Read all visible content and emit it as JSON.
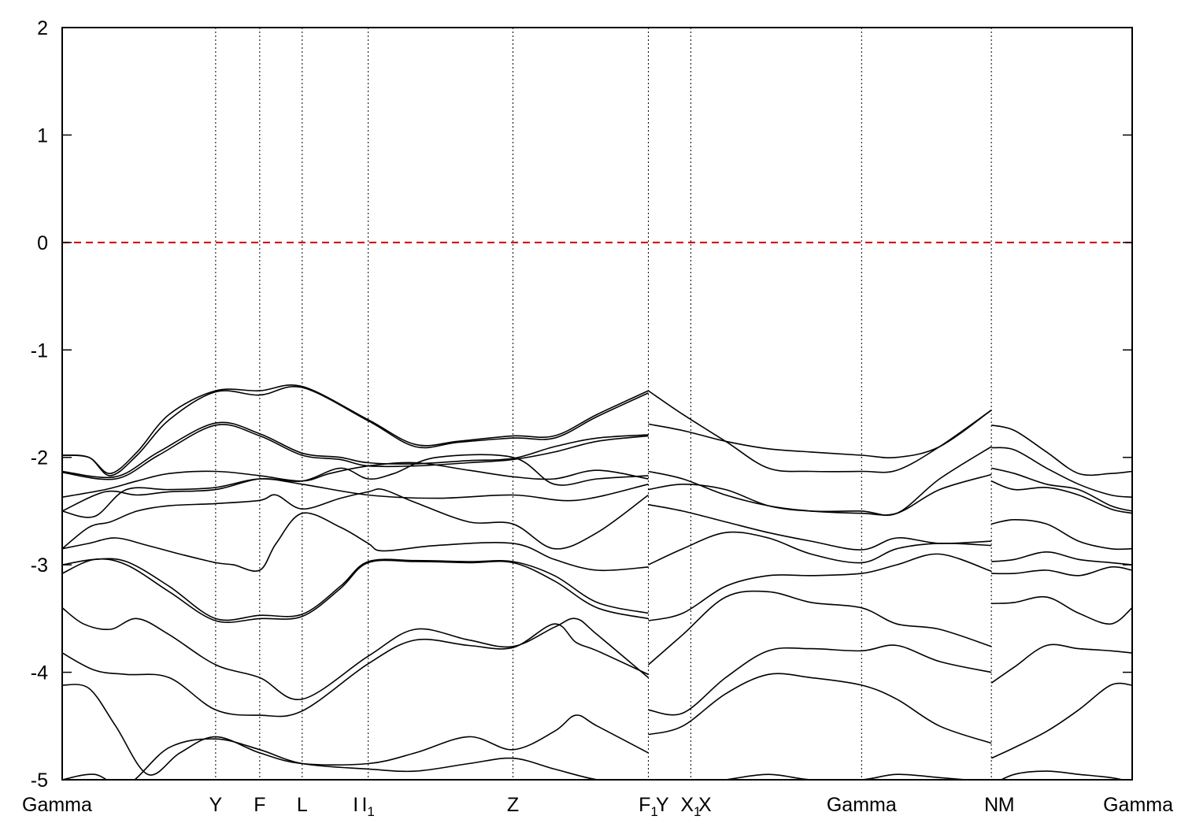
{
  "chart_data": {
    "type": "line",
    "title": "",
    "xlabel": "",
    "ylabel": "",
    "xlim": [
      0,
      100
    ],
    "ylim": [
      -5,
      2
    ],
    "grid": false,
    "yticks": [
      2,
      1,
      0,
      -1,
      -2,
      -3,
      -4,
      -5
    ],
    "xticks": [
      {
        "label": "Gamma",
        "sub": "",
        "pos": 0,
        "vline": false
      },
      {
        "label": "Y",
        "sub": "",
        "pos": 14.34,
        "vline": true
      },
      {
        "label": "F",
        "sub": "",
        "pos": 18.46,
        "vline": true
      },
      {
        "label": "L",
        "sub": "",
        "pos": 22.43,
        "vline": true
      },
      {
        "label": "I",
        "sub": "",
        "pos": 27.43,
        "vline": false
      },
      {
        "label": "I",
        "sub": "1",
        "pos": 28.6,
        "vline": true
      },
      {
        "label": "Z",
        "sub": "",
        "pos": 42.13,
        "vline": true
      },
      {
        "label": "F",
        "sub": "1",
        "pos": 54.78,
        "vline": true
      },
      {
        "label": "Y",
        "sub": "",
        "pos": 56.1,
        "vline": false
      },
      {
        "label": "X",
        "sub": "1",
        "pos": 58.75,
        "vline": true
      },
      {
        "label": "X",
        "sub": "",
        "pos": 60.07,
        "vline": false
      },
      {
        "label": "Gamma",
        "sub": "",
        "pos": 74.71,
        "vline": true
      },
      {
        "label": "N",
        "sub": "",
        "pos": 86.84,
        "vline": true
      },
      {
        "label": "M",
        "sub": "",
        "pos": 88.24,
        "vline": false
      },
      {
        "label": "Gamma",
        "sub": "",
        "pos": 100,
        "vline": false
      }
    ],
    "fermi_level": {
      "y": 0,
      "color": "#d00000",
      "style": "dashed"
    },
    "series_color": "#000000",
    "series": [
      {
        "x": [
          0,
          2.5,
          4.5,
          7,
          10,
          14.34,
          18.46,
          22.43,
          28.6,
          33,
          37,
          42.13,
          46,
          50,
          54.78
        ],
        "y": [
          -1.98,
          -2.0,
          -2.15,
          -1.95,
          -1.6,
          -1.38,
          -1.38,
          -1.34,
          -1.65,
          -1.88,
          -1.85,
          -1.8,
          -1.8,
          -1.6,
          -1.38
        ]
      },
      {
        "x": [
          0,
          2.5,
          4.5,
          7,
          10,
          14.34,
          18.46,
          22.43,
          28.6,
          33,
          37,
          42.13,
          46,
          50,
          54.78
        ],
        "y": [
          -1.98,
          -2.0,
          -2.17,
          -1.98,
          -1.65,
          -1.39,
          -1.42,
          -1.35,
          -1.66,
          -1.9,
          -1.86,
          -1.82,
          -1.82,
          -1.62,
          -1.4
        ]
      },
      {
        "x": [
          0,
          5,
          9,
          14.34,
          18.46,
          22.43,
          26,
          28.6,
          33,
          38,
          42.13,
          46,
          50,
          54.78
        ],
        "y": [
          -2.13,
          -2.18,
          -1.95,
          -1.68,
          -1.78,
          -1.96,
          -2.0,
          -2.05,
          -2.06,
          -2.03,
          -2.01,
          -1.9,
          -1.82,
          -1.79
        ]
      },
      {
        "x": [
          0,
          5,
          9,
          14.34,
          18.46,
          22.43,
          26,
          28.6,
          33,
          38,
          42.13,
          46,
          50,
          54.78
        ],
        "y": [
          -2.14,
          -2.2,
          -1.98,
          -1.7,
          -1.8,
          -1.98,
          -2.02,
          -2.08,
          -2.08,
          -2.05,
          -2.02,
          -1.95,
          -1.85,
          -1.8
        ]
      },
      {
        "x": [
          0,
          4,
          7,
          10,
          14.34,
          18.46,
          22.43,
          25,
          28.6,
          33,
          38,
          42.13,
          46,
          50,
          54.78
        ],
        "y": [
          -2.37,
          -2.3,
          -2.22,
          -2.15,
          -2.13,
          -2.17,
          -2.22,
          -2.15,
          -2.08,
          -2.05,
          -2.12,
          -2.18,
          -2.2,
          -2.12,
          -2.2
        ]
      },
      {
        "x": [
          0,
          4,
          7,
          10,
          14.34,
          18.46,
          22.43,
          26,
          28.6,
          31,
          35,
          42.13,
          46,
          50,
          54.78
        ],
        "y": [
          -2.5,
          -2.32,
          -2.35,
          -2.32,
          -2.3,
          -2.2,
          -2.22,
          -2.1,
          -2.2,
          -2.15,
          -2.0,
          -2.0,
          -2.25,
          -2.2,
          -2.17
        ]
      },
      {
        "x": [
          0,
          3,
          6,
          10,
          14.34,
          18.46,
          22.43,
          28.6,
          35,
          42.13,
          48,
          54.78
        ],
        "y": [
          -2.5,
          -2.55,
          -2.3,
          -2.3,
          -2.28,
          -2.2,
          -2.25,
          -2.35,
          -2.38,
          -2.35,
          -2.4,
          -2.25
        ]
      },
      {
        "x": [
          0,
          2.5,
          4.5,
          7,
          10,
          14.34,
          18.46,
          20,
          22.43,
          26,
          28.6,
          30,
          33,
          38,
          42.13,
          46,
          50,
          54.78
        ],
        "y": [
          -2.85,
          -2.65,
          -2.6,
          -2.5,
          -2.45,
          -2.43,
          -2.4,
          -2.35,
          -2.48,
          -2.38,
          -2.32,
          -2.3,
          -2.42,
          -2.6,
          -2.62,
          -2.85,
          -2.7,
          -2.35
        ]
      },
      {
        "x": [
          0,
          2.5,
          5,
          8,
          11,
          14.34,
          16,
          18.46,
          20,
          22.43,
          26,
          28.6,
          30,
          35,
          42.13,
          46,
          50,
          54.78
        ],
        "y": [
          -2.85,
          -2.8,
          -2.75,
          -2.82,
          -2.9,
          -2.98,
          -3.0,
          -3.05,
          -2.8,
          -2.52,
          -2.65,
          -2.8,
          -2.87,
          -2.82,
          -2.8,
          -2.95,
          -3.05,
          -3.02
        ]
      },
      {
        "x": [
          0,
          3,
          6,
          10,
          14.34,
          18.46,
          22.43,
          26,
          28.6,
          33,
          38,
          42.13,
          46,
          50,
          54.78
        ],
        "y": [
          -3.0,
          -2.95,
          -2.97,
          -3.2,
          -3.5,
          -3.47,
          -3.46,
          -3.2,
          -2.97,
          -2.96,
          -2.97,
          -2.97,
          -3.1,
          -3.35,
          -3.45
        ]
      },
      {
        "x": [
          0,
          3,
          6,
          10,
          14.34,
          18.46,
          22.43,
          26,
          28.6,
          33,
          38,
          42.13,
          46,
          50,
          54.78
        ],
        "y": [
          -3.08,
          -2.95,
          -3.0,
          -3.25,
          -3.52,
          -3.5,
          -3.48,
          -3.22,
          -2.98,
          -2.97,
          -2.98,
          -2.98,
          -3.15,
          -3.4,
          -3.5
        ]
      },
      {
        "x": [
          0,
          2,
          4.5,
          7,
          10,
          14.34,
          18.46,
          22.43,
          28.6,
          33,
          38,
          42.13,
          46,
          48,
          50,
          54.78
        ],
        "y": [
          -3.4,
          -3.55,
          -3.6,
          -3.5,
          -3.65,
          -3.93,
          -4.05,
          -4.25,
          -3.85,
          -3.6,
          -3.7,
          -3.76,
          -3.58,
          -3.5,
          -3.65,
          -4.05
        ]
      },
      {
        "x": [
          0,
          3,
          6,
          10,
          14.34,
          18.46,
          22.43,
          28.6,
          33,
          38,
          42.13,
          46,
          48,
          50,
          54.78
        ],
        "y": [
          -3.82,
          -3.98,
          -4.02,
          -4.05,
          -4.35,
          -4.4,
          -4.36,
          -3.92,
          -3.7,
          -3.75,
          -3.77,
          -3.55,
          -3.72,
          -3.8,
          -4.02
        ]
      },
      {
        "x": [
          0,
          2.5,
          5,
          8,
          11,
          14.34,
          18.46,
          22.43,
          28.6,
          33,
          38,
          42.13,
          46,
          48,
          50,
          54.78
        ],
        "y": [
          -4.12,
          -4.15,
          -4.5,
          -4.95,
          -4.75,
          -4.6,
          -4.75,
          -4.85,
          -4.85,
          -4.75,
          -4.6,
          -4.72,
          -4.55,
          -4.4,
          -4.5,
          -4.75
        ]
      },
      {
        "x": [
          0,
          3,
          6,
          10,
          14.34,
          18.46,
          22.43,
          28.6,
          33,
          38,
          42.13,
          46,
          50,
          54.78
        ],
        "y": [
          -5.0,
          -4.95,
          -5.05,
          -4.7,
          -4.62,
          -4.72,
          -4.85,
          -4.9,
          -4.92,
          -4.85,
          -4.8,
          -4.9,
          -5.0,
          -5.05
        ]
      },
      {
        "x": [
          54.78,
          58,
          62,
          66,
          70,
          74.71,
          78,
          82,
          86.84
        ],
        "y": [
          -1.38,
          -1.6,
          -1.85,
          -2.1,
          -2.13,
          -2.13,
          -2.12,
          -1.9,
          -1.56
        ]
      },
      {
        "x": [
          54.78,
          58,
          62,
          66,
          70,
          74.71,
          78,
          82,
          86.84
        ],
        "y": [
          -1.69,
          -1.75,
          -1.85,
          -1.92,
          -1.95,
          -1.98,
          -2.0,
          -1.9,
          -1.56
        ]
      },
      {
        "x": [
          54.78,
          58,
          62,
          66,
          70,
          74.71,
          78,
          82,
          86.84
        ],
        "y": [
          -2.13,
          -2.2,
          -2.35,
          -2.45,
          -2.5,
          -2.52,
          -2.52,
          -2.3,
          -2.16
        ]
      },
      {
        "x": [
          54.78,
          58,
          62,
          66,
          70,
          74.71,
          78,
          82,
          86.84
        ],
        "y": [
          -2.3,
          -2.25,
          -2.3,
          -2.45,
          -2.5,
          -2.5,
          -2.52,
          -2.2,
          -1.9
        ]
      },
      {
        "x": [
          54.78,
          58,
          62,
          66,
          70,
          74.71,
          78,
          82,
          86.84
        ],
        "y": [
          -2.44,
          -2.5,
          -2.6,
          -2.7,
          -2.78,
          -2.86,
          -2.75,
          -2.8,
          -2.78
        ]
      },
      {
        "x": [
          54.78,
          58,
          62,
          66,
          70,
          74.71,
          78,
          82,
          86.84
        ],
        "y": [
          -3.0,
          -2.85,
          -2.7,
          -2.75,
          -2.9,
          -2.98,
          -2.85,
          -2.8,
          -2.82
        ]
      },
      {
        "x": [
          54.78,
          58,
          62,
          66,
          70,
          74.71,
          78,
          82,
          86.84
        ],
        "y": [
          -3.52,
          -3.45,
          -3.2,
          -3.1,
          -3.1,
          -3.08,
          -3.0,
          -2.9,
          -3.06
        ]
      },
      {
        "x": [
          54.78,
          58,
          62,
          66,
          70,
          74.71,
          78,
          82,
          86.84
        ],
        "y": [
          -3.93,
          -3.65,
          -3.3,
          -3.25,
          -3.35,
          -3.4,
          -3.55,
          -3.6,
          -3.76
        ]
      },
      {
        "x": [
          54.78,
          58,
          62,
          66,
          70,
          74.71,
          78,
          82,
          86.84
        ],
        "y": [
          -4.35,
          -4.38,
          -4.05,
          -3.8,
          -3.78,
          -3.8,
          -3.75,
          -3.9,
          -4.0
        ]
      },
      {
        "x": [
          54.78,
          58,
          62,
          66,
          70,
          74.71,
          78,
          82,
          86.84
        ],
        "y": [
          -4.58,
          -4.5,
          -4.2,
          -4.02,
          -4.05,
          -4.12,
          -4.25,
          -4.5,
          -4.66
        ]
      },
      {
        "x": [
          54.78,
          58,
          62,
          66,
          70,
          74.71,
          78,
          82,
          86.84
        ],
        "y": [
          -5.05,
          -5.05,
          -5.0,
          -4.95,
          -5.0,
          -5.0,
          -4.95,
          -4.98,
          -5.02
        ]
      },
      {
        "x": [
          86.84,
          89,
          92,
          95,
          98,
          100
        ],
        "y": [
          -1.7,
          -1.75,
          -1.95,
          -2.15,
          -2.15,
          -2.13
        ]
      },
      {
        "x": [
          86.84,
          89,
          92,
          95,
          98,
          100
        ],
        "y": [
          -1.91,
          -1.93,
          -2.1,
          -2.25,
          -2.35,
          -2.37
        ]
      },
      {
        "x": [
          86.84,
          89,
          92,
          95,
          98,
          100
        ],
        "y": [
          -2.1,
          -2.15,
          -2.25,
          -2.3,
          -2.45,
          -2.5
        ]
      },
      {
        "x": [
          86.84,
          89,
          92,
          95,
          98,
          100
        ],
        "y": [
          -2.22,
          -2.3,
          -2.28,
          -2.35,
          -2.48,
          -2.52
        ]
      },
      {
        "x": [
          86.84,
          89,
          92,
          95,
          98,
          100
        ],
        "y": [
          -2.62,
          -2.58,
          -2.62,
          -2.78,
          -2.85,
          -2.85
        ]
      },
      {
        "x": [
          86.84,
          89,
          92,
          95,
          98,
          100
        ],
        "y": [
          -2.97,
          -2.95,
          -2.88,
          -2.95,
          -2.98,
          -3.0
        ]
      },
      {
        "x": [
          86.84,
          89,
          92,
          95,
          98,
          100
        ],
        "y": [
          -3.08,
          -3.08,
          -3.05,
          -3.1,
          -3.02,
          -3.05
        ]
      },
      {
        "x": [
          86.84,
          89,
          92,
          95,
          98,
          100
        ],
        "y": [
          -3.36,
          -3.35,
          -3.3,
          -3.45,
          -3.55,
          -3.4
        ]
      },
      {
        "x": [
          86.84,
          89,
          92,
          95,
          98,
          100
        ],
        "y": [
          -4.1,
          -3.95,
          -3.75,
          -3.78,
          -3.8,
          -3.82
        ]
      },
      {
        "x": [
          86.84,
          89,
          92,
          95,
          98,
          100
        ],
        "y": [
          -4.8,
          -4.7,
          -4.55,
          -4.35,
          -4.12,
          -4.12
        ]
      },
      {
        "x": [
          86.84,
          89,
          92,
          95,
          98,
          100
        ],
        "y": [
          -5.05,
          -4.95,
          -4.92,
          -4.95,
          -4.98,
          -5.02
        ]
      }
    ]
  }
}
